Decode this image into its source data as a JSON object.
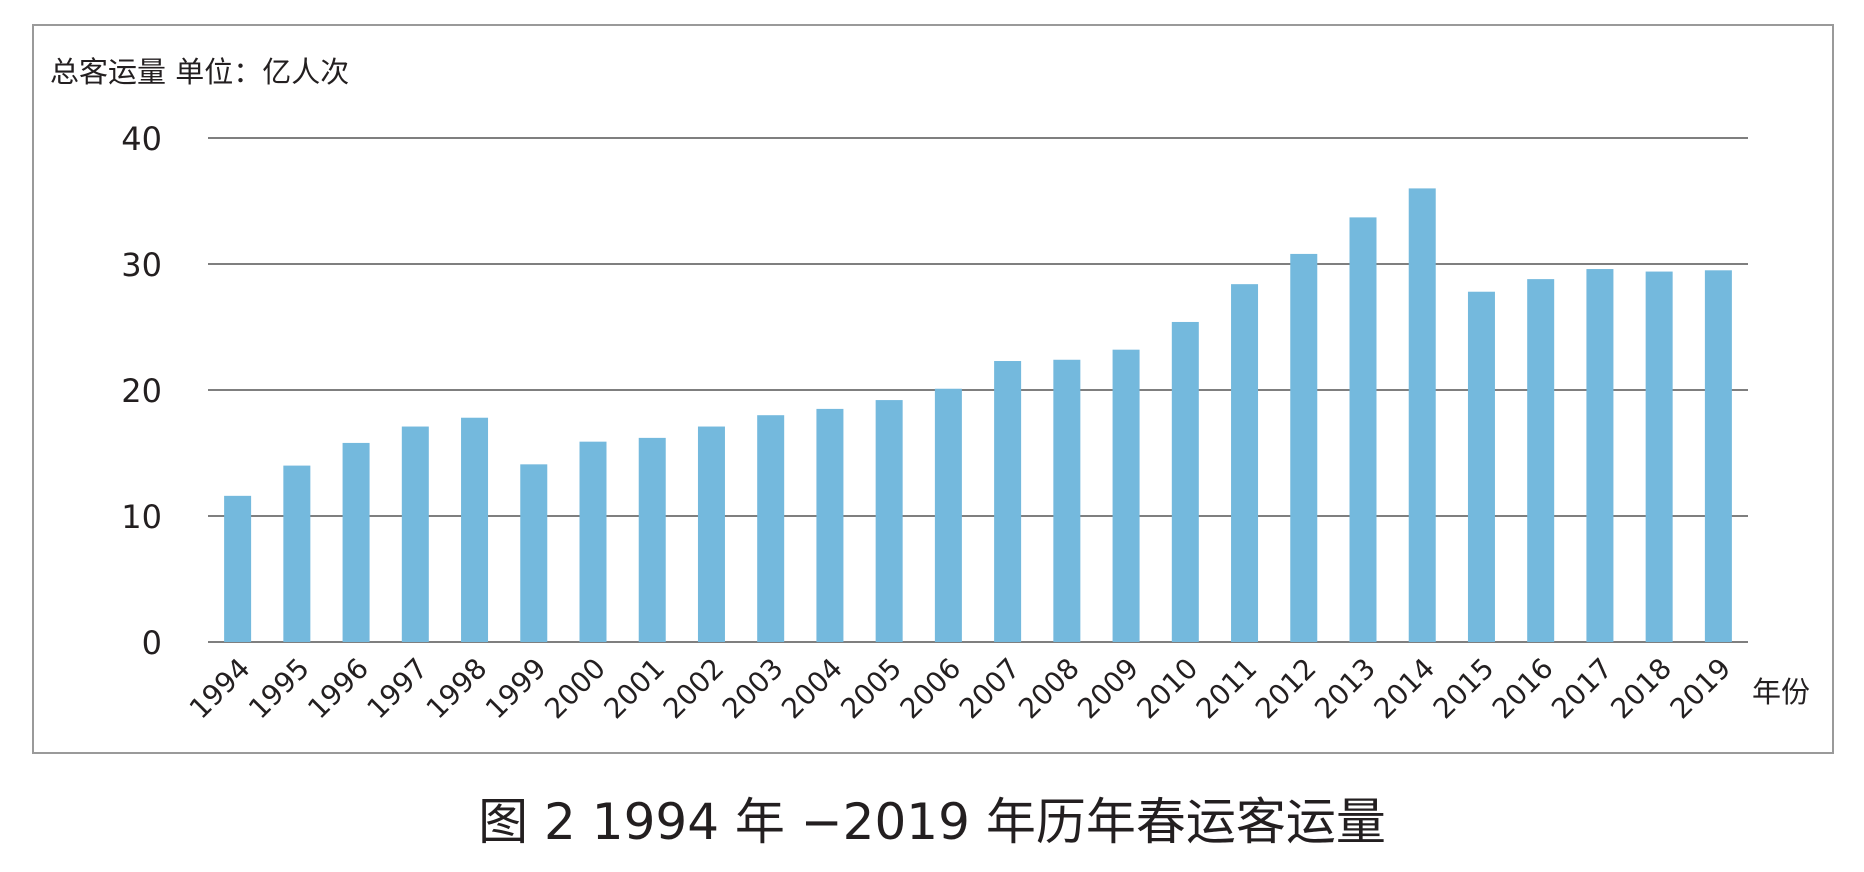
{
  "caption": "图 2  1994 年 −2019 年历年春运客运量",
  "chart_data": {
    "type": "bar",
    "title": "",
    "ylabel": "总客运量  单位：亿人次",
    "xlabel": "年份",
    "ylim": [
      0,
      40
    ],
    "yticks": [
      "0",
      "10",
      "20",
      "30",
      "40"
    ],
    "grid": true,
    "bar_color": "#74b9dd",
    "categories": [
      "1994",
      "1995",
      "1996",
      "1997",
      "1998",
      "1999",
      "2000",
      "2001",
      "2002",
      "2003",
      "2004",
      "2005",
      "2006",
      "2007",
      "2008",
      "2009",
      "2010",
      "2011",
      "2012",
      "2013",
      "2014",
      "2015",
      "2016",
      "2017",
      "2018",
      "2019"
    ],
    "values": [
      11.6,
      14.0,
      15.8,
      17.1,
      17.8,
      14.1,
      15.9,
      16.2,
      17.1,
      18.0,
      18.5,
      19.2,
      20.1,
      22.3,
      22.4,
      23.2,
      25.4,
      28.4,
      30.8,
      33.7,
      36.0,
      27.8,
      28.8,
      29.6,
      29.4,
      29.5
    ]
  }
}
